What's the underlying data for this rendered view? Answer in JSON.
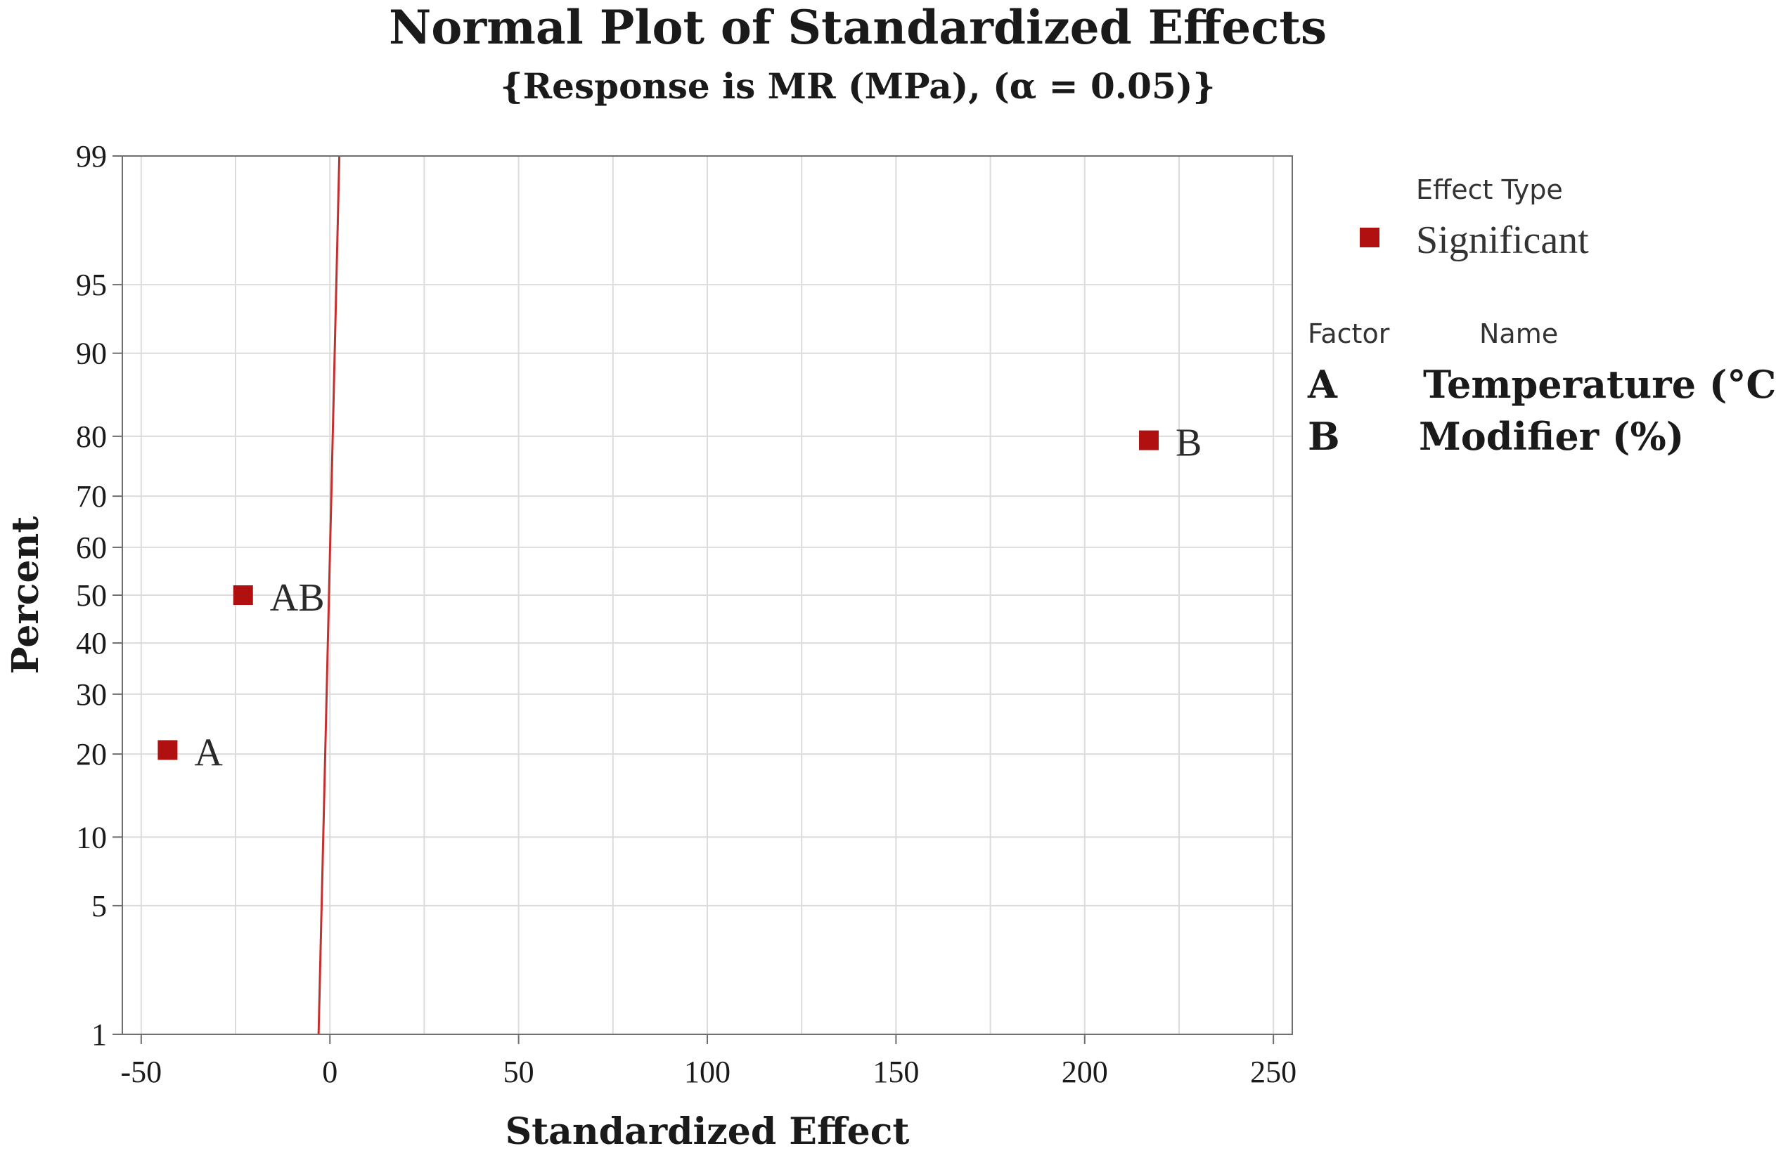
{
  "chart_data": {
    "type": "scatter",
    "title": "Normal Plot of Standardized Effects",
    "subtitle": "{Response is MR (MPa), (α = 0.05)}",
    "xlabel": "Standardized Effect",
    "ylabel": "Percent",
    "xlim": [
      -55,
      255
    ],
    "ylim_percent": [
      1,
      99
    ],
    "y_scale": "normal-probability",
    "x_ticks": [
      -50,
      0,
      50,
      100,
      150,
      200,
      250
    ],
    "x_tick_labels": [
      "-50",
      "0",
      "50",
      "100",
      "150",
      "200",
      "250"
    ],
    "y_ticks": [
      1,
      5,
      10,
      20,
      30,
      40,
      50,
      60,
      70,
      80,
      90,
      95,
      99
    ],
    "y_tick_labels": [
      "1",
      "5",
      "10",
      "20",
      "30",
      "40",
      "50",
      "60",
      "70",
      "80",
      "90",
      "95",
      "99"
    ],
    "grid": true,
    "points": [
      {
        "label": "A",
        "x": -43,
        "y": 20.6
      },
      {
        "label": "AB",
        "x": -23,
        "y": 50
      },
      {
        "label": "B",
        "x": 217,
        "y": 79.4
      }
    ],
    "reference_line": {
      "x_start": -3,
      "y_start": 1,
      "x_end": 2.5,
      "y_end": 99
    },
    "point_color": "#b01010",
    "line_color": "#c43030"
  },
  "legend": {
    "effect_type_header": "Effect Type",
    "items": [
      {
        "label": "Significant",
        "color": "#b01010"
      }
    ],
    "factor_header": "Factor",
    "name_header": "Name",
    "factors": [
      {
        "code": "A",
        "name": "Temperature (°C)"
      },
      {
        "code": "B",
        "name": "Modifier (%)"
      }
    ]
  }
}
